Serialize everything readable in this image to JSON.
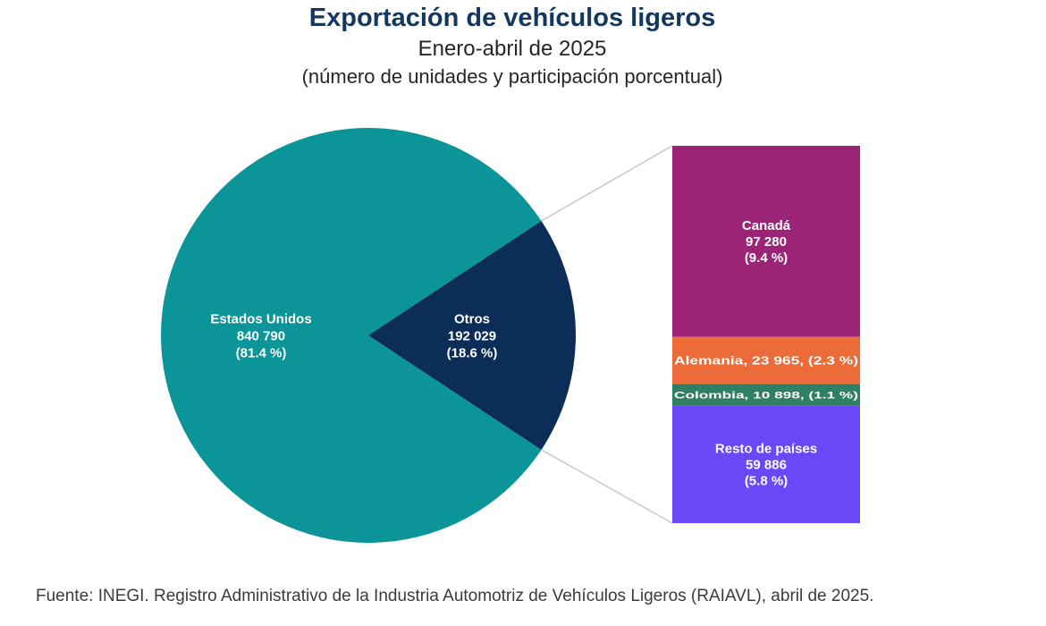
{
  "chart_data": {
    "type": "pie",
    "title": "Exportación de vehículos ligeros",
    "subtitle": "Enero-abril de 2025",
    "subtitle2": "(número de unidades y participación porcentual)",
    "pie": {
      "slices": [
        {
          "name": "Estados Unidos",
          "value": 840790,
          "value_label": "840 790",
          "percent_label": "(81.4 %)",
          "color": "#0b9599"
        },
        {
          "name": "Otros",
          "value": 192029,
          "value_label": "192 029",
          "percent_label": "(18.6 %)",
          "color": "#0c2d57"
        }
      ]
    },
    "breakdown": {
      "parent": "Otros",
      "segments": [
        {
          "name": "Canadá",
          "value": 97280,
          "value_label": "97 280",
          "percent_label": "(9.4 %)",
          "color": "#9c2477",
          "inline_label": ""
        },
        {
          "name": "Alemania",
          "value": 23965,
          "value_label": "23 965",
          "percent_label": "(2.3 %)",
          "color": "#ec6b38",
          "inline_label": "Alemania, 23 965, (2.3 %)"
        },
        {
          "name": "Colombia",
          "value": 10898,
          "value_label": "10 898",
          "percent_label": "(1.1 %)",
          "color": "#2f8063",
          "inline_label": "Colombia, 10 898, (1.1 %)"
        },
        {
          "name": "Resto de países",
          "value": 59886,
          "value_label": "59 886",
          "percent_label": "(5.8 %)",
          "color": "#6a47f7",
          "inline_label": ""
        }
      ]
    }
  },
  "source": "Fuente: INEGI. Registro Administrativo de la Industria Automotriz de Vehículos Ligeros (RAIAVL), abril de 2025."
}
